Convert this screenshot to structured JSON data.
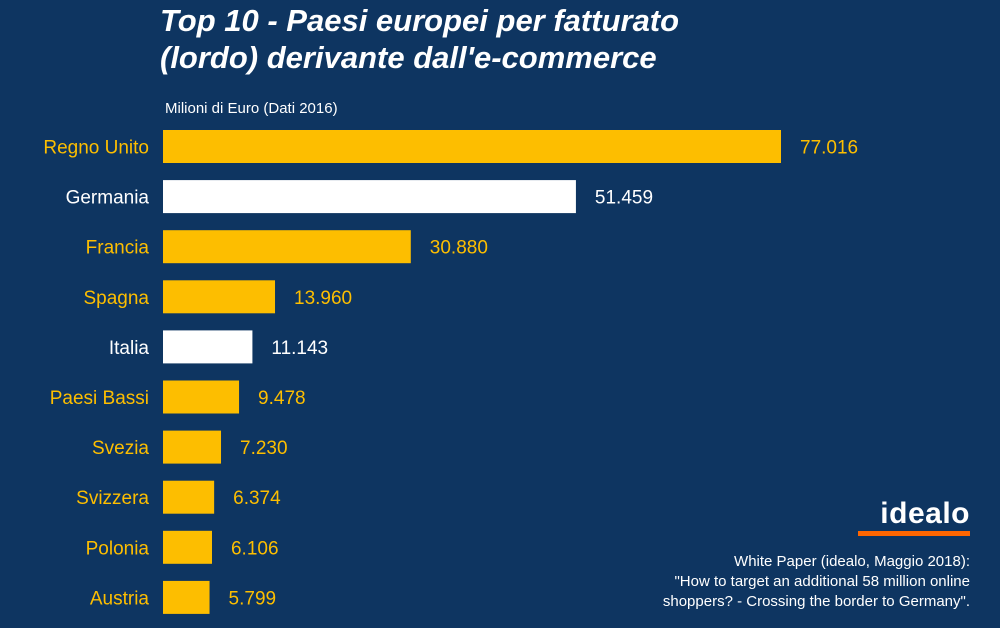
{
  "title_lines": [
    "Top 10 - Paesi europei per fatturato",
    "(lordo) derivante dall'e-commerce"
  ],
  "subtitle": "Milioni di Euro (Dati 2016)",
  "logo": "idealo",
  "source_lines": [
    "White Paper (idealo, Maggio 2018):",
    "\"How to target an additional 58 million online",
    "shoppers? - Crossing the border to Germany\"."
  ],
  "colors": {
    "background": "#0e3561",
    "highlight": "#fdbe00",
    "normal": "#ffffff",
    "brand_accent": "#ff6600"
  },
  "chart_data": {
    "type": "bar",
    "orientation": "horizontal",
    "categories": [
      "Regno Unito",
      "Germania",
      "Francia",
      "Spagna",
      "Italia",
      "Paesi Bassi",
      "Svezia",
      "Svizzera",
      "Polonia",
      "Austria"
    ],
    "values": [
      77016,
      51459,
      30880,
      13960,
      11143,
      9478,
      7230,
      6374,
      6106,
      5799
    ],
    "value_labels": [
      "77.016",
      "51.459",
      "30.880",
      "13.960",
      "11.143",
      "9.478",
      "7.230",
      "6.374",
      "6.106",
      "5.799"
    ],
    "bar_colors": [
      "highlight",
      "normal",
      "highlight",
      "highlight",
      "normal",
      "highlight",
      "highlight",
      "highlight",
      "highlight",
      "highlight"
    ],
    "ylabel": "Milioni di Euro (Dati 2016)",
    "xlim": [
      0,
      77016
    ],
    "grid": false,
    "legend": false
  }
}
